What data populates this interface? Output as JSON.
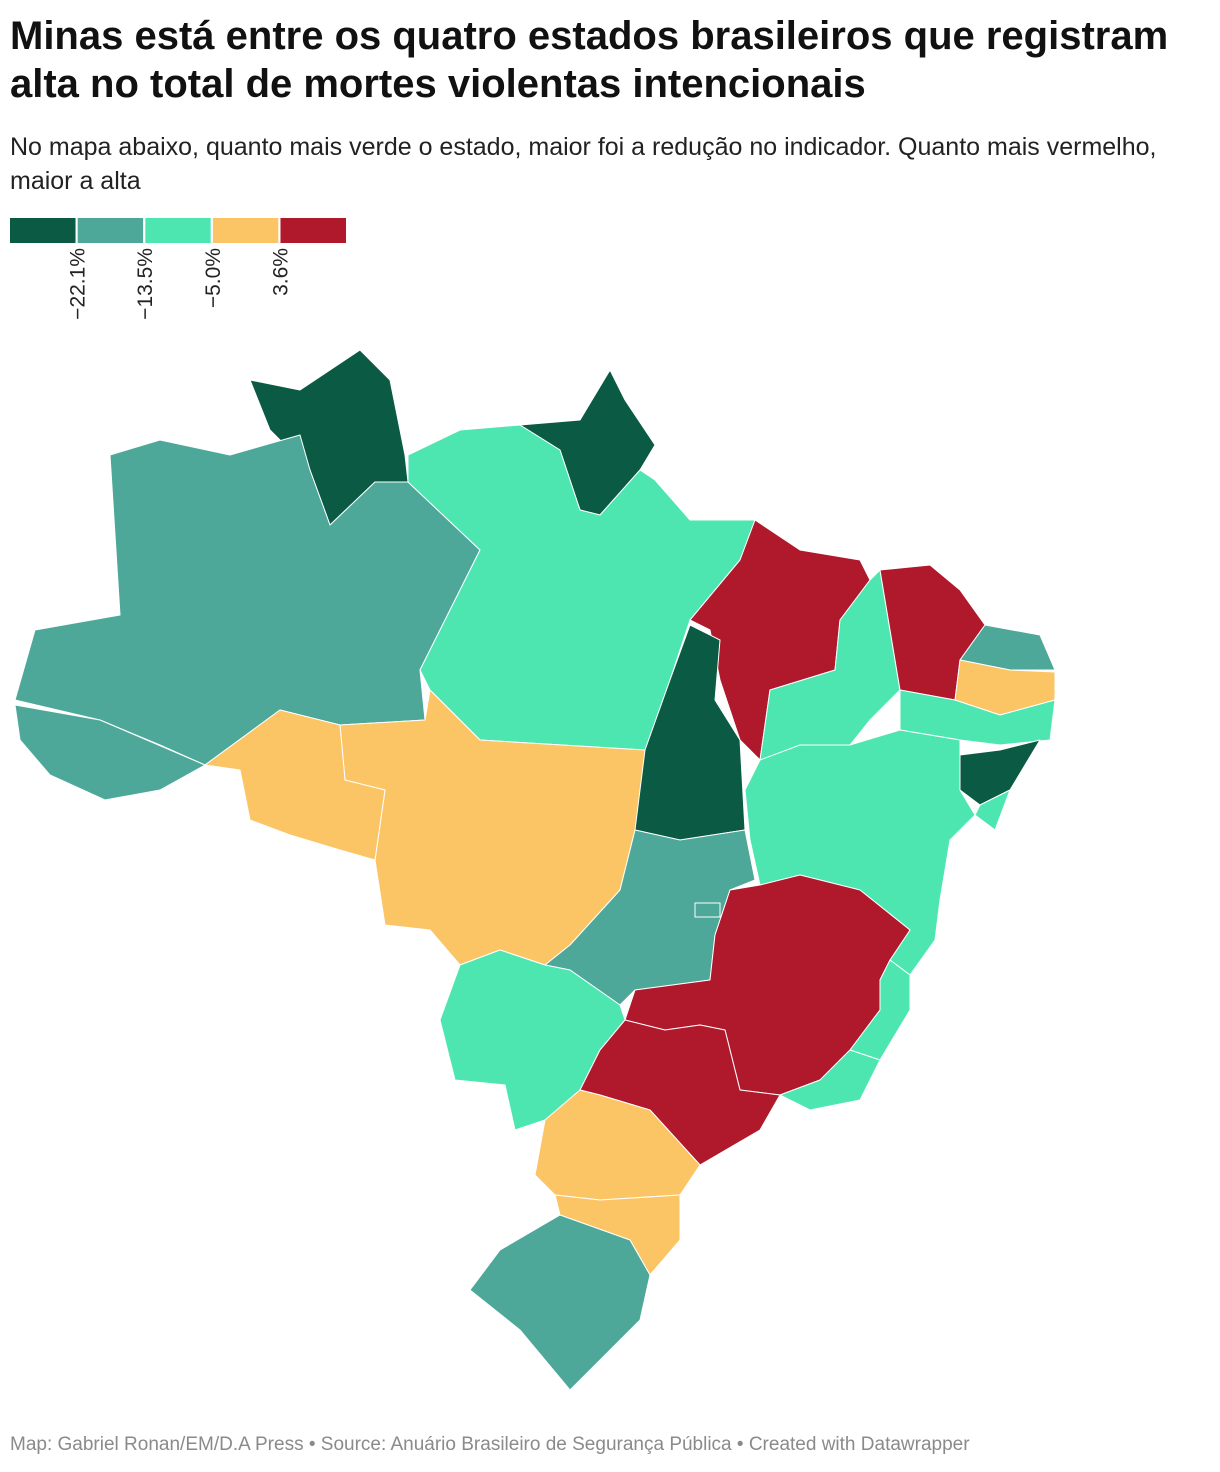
{
  "title": "Minas está entre os quatro estados brasileiros que registram alta no total de mortes violentas intencionais",
  "subtitle": "No mapa abaixo, quanto mais verde o estado, maior foi a redução no indicador. Quanto mais vermelho, maior a alta",
  "legend": {
    "colors": [
      "#0a5a44",
      "#4da899",
      "#4de6b1",
      "#fbc566",
      "#b0182c"
    ],
    "ticks": [
      {
        "value": -22.1,
        "label": "−22.1%"
      },
      {
        "value": -13.5,
        "label": "−13.5%"
      },
      {
        "value": -5.0,
        "label": "−5.0%"
      },
      {
        "value": 3.6,
        "label": "3.6%"
      }
    ]
  },
  "footer": "Map: Gabriel Ronan/EM/D.A Press • Source: Anuário Brasileiro de Segurança Pública • Created with Datawrapper"
}
